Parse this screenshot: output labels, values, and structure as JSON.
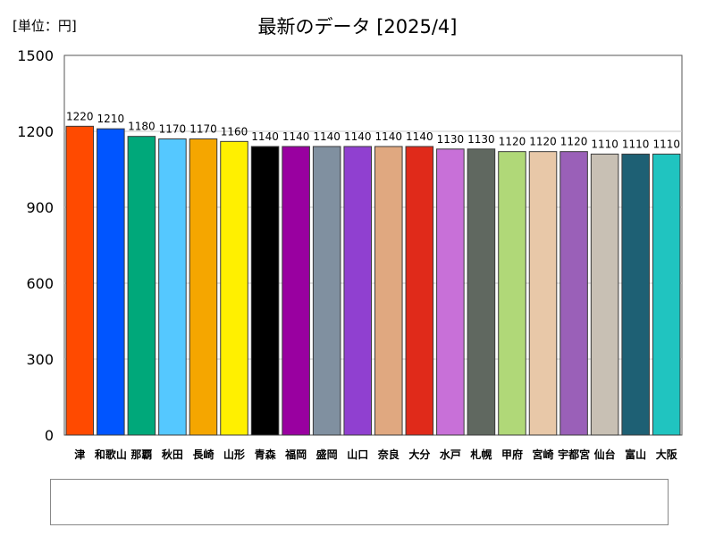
{
  "unit_label": "[単位：円]",
  "title": "最新のデータ [2025/4]",
  "chart_data": {
    "type": "bar",
    "title": "最新のデータ [2025/4]",
    "ylim": [
      0,
      1500
    ],
    "yticks": [
      0,
      300,
      600,
      900,
      1200,
      1500
    ],
    "grid": true,
    "legend_position": "bottom",
    "categories": [
      "津",
      "和歌山",
      "那覇",
      "秋田",
      "長崎",
      "山形",
      "青森",
      "福岡",
      "盛岡",
      "山口",
      "奈良",
      "大分",
      "水戸",
      "札幌",
      "甲府",
      "宮崎",
      "宇都宮",
      "仙台",
      "富山",
      "大阪"
    ],
    "values": [
      1220,
      1210,
      1180,
      1170,
      1170,
      1160,
      1140,
      1140,
      1140,
      1140,
      1140,
      1140,
      1130,
      1130,
      1120,
      1120,
      1120,
      1110,
      1110,
      1110
    ],
    "colors": [
      "#ff4a00",
      "#0055ff",
      "#00a87a",
      "#55c8ff",
      "#f5a600",
      "#fff000",
      "#000000",
      "#9900a0",
      "#8090a0",
      "#9040d0",
      "#e0a880",
      "#e02a1a",
      "#c870d8",
      "#606860",
      "#b0d878",
      "#e8c8a8",
      "#9a60b8",
      "#c8c0b4",
      "#1e6074",
      "#20c4c0"
    ]
  }
}
